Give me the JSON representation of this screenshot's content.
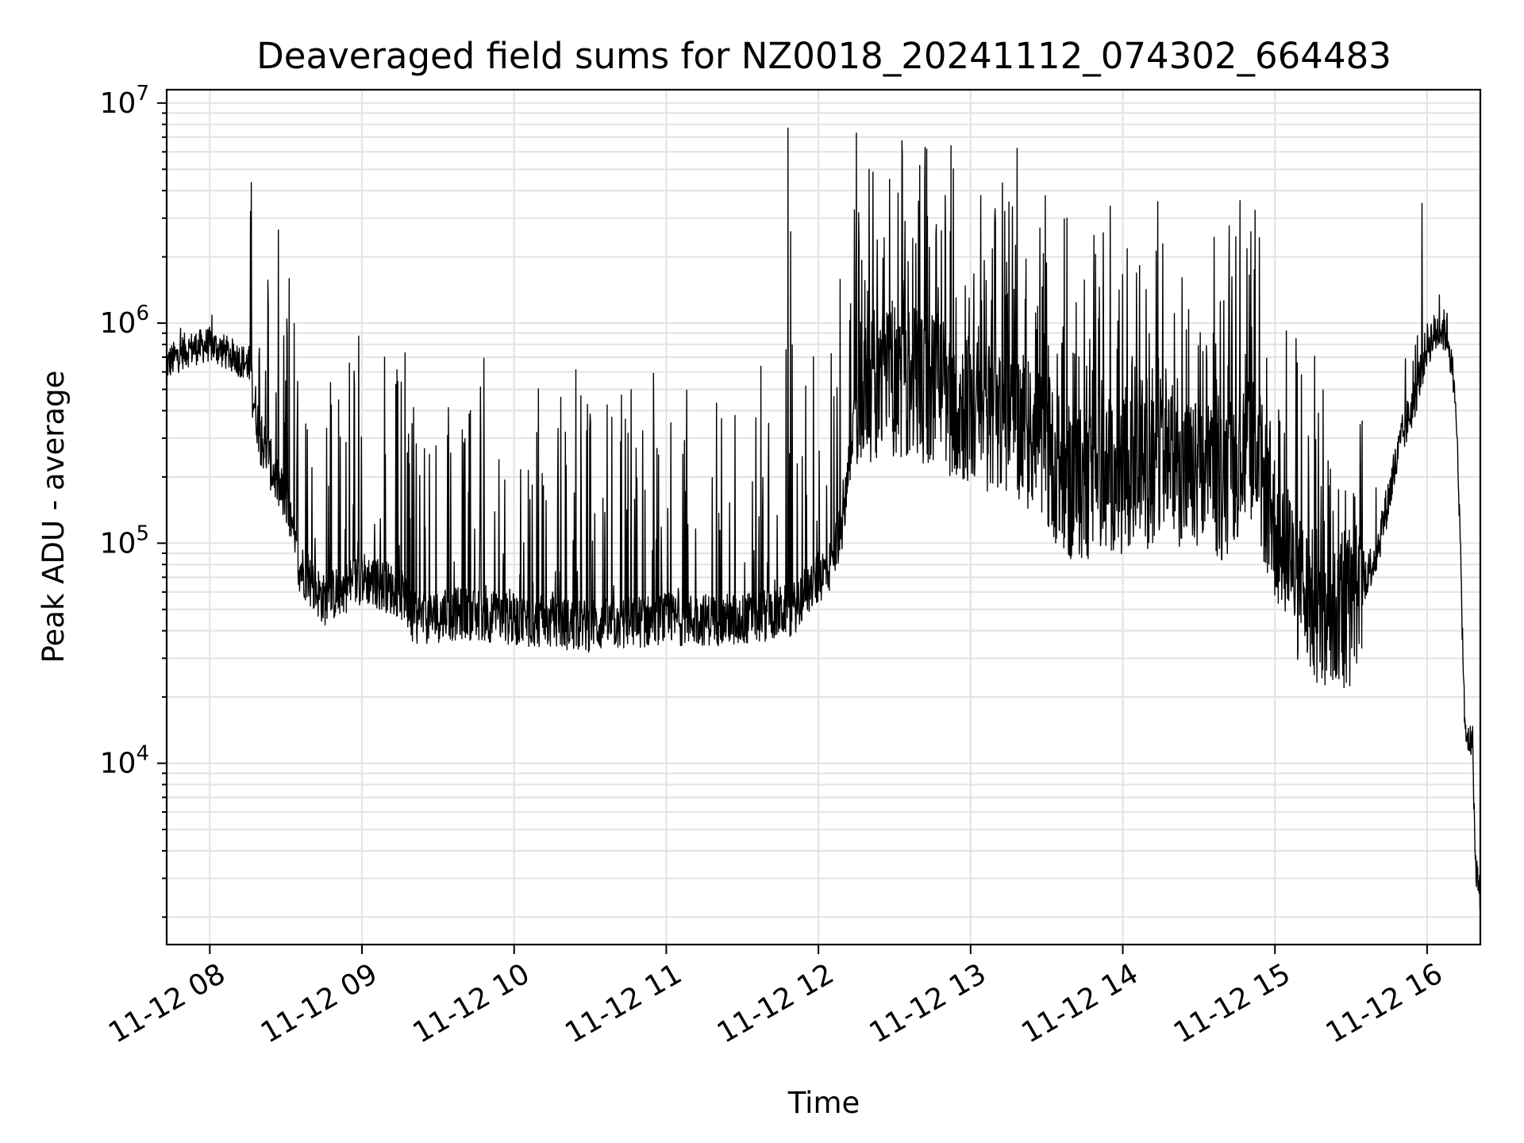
{
  "chart_data": {
    "type": "line",
    "title": "Deaveraged field sums for NZ0018_20241112_074302_664483",
    "xlabel": "Time",
    "ylabel": "Peak ADU - average",
    "y_scale": "log",
    "ylim": [
      1500,
      11500000
    ],
    "xlim": [
      "11-12 07:43",
      "11-12 16:21"
    ],
    "x_ticks": [
      "11-12 08",
      "11-12 09",
      "11-12 10",
      "11-12 11",
      "11-12 12",
      "11-12 13",
      "11-12 14",
      "11-12 15",
      "11-12 16"
    ],
    "y_ticks": [
      {
        "base": "10",
        "exp": "4",
        "value": 10000
      },
      {
        "base": "10",
        "exp": "5",
        "value": 100000
      },
      {
        "base": "10",
        "exp": "6",
        "value": 1000000
      },
      {
        "base": "10",
        "exp": "7",
        "value": 10000000
      }
    ],
    "grid": true,
    "line_color": "#000000",
    "series": [
      {
        "x": [
          "11-12 07:43",
          "11-12 07:50",
          "11-12 08:00",
          "11-12 08:10",
          "11-12 08:15",
          "11-12 08:20",
          "11-12 08:30",
          "11-12 08:35",
          "11-12 08:45",
          "11-12 09:00",
          "11-12 09:15",
          "11-12 09:20",
          "11-12 09:40",
          "11-12 10:00",
          "11-12 10:30",
          "11-12 11:00",
          "11-12 11:30",
          "11-12 11:50",
          "11-12 11:55",
          "11-12 12:05",
          "11-12 12:10",
          "11-12 12:15",
          "11-12 12:30",
          "11-12 12:45",
          "11-12 13:00",
          "11-12 13:20",
          "11-12 13:40",
          "11-12 14:00",
          "11-12 14:20",
          "11-12 14:40",
          "11-12 14:50",
          "11-12 15:00",
          "11-12 15:10",
          "11-12 15:20",
          "11-12 15:30",
          "11-12 15:40",
          "11-12 15:50",
          "11-12 15:55",
          "11-12 16:00",
          "11-12 16:05",
          "11-12 16:08",
          "11-12 16:10",
          "11-12 16:12",
          "11-12 16:15",
          "11-12 16:18",
          "11-12 16:19",
          "11-12 16:21"
        ],
        "y": [
          650000,
          750000,
          800000,
          700000,
          650000,
          300000,
          150000,
          80000,
          55000,
          70000,
          60000,
          45000,
          48000,
          45000,
          42000,
          45000,
          45000,
          50000,
          60000,
          80000,
          130000,
          500000,
          550000,
          500000,
          400000,
          350000,
          180000,
          200000,
          220000,
          180000,
          300000,
          120000,
          60000,
          45000,
          50000,
          90000,
          300000,
          450000,
          800000,
          950000,
          900000,
          600000,
          300000,
          13000,
          12500,
          3500,
          2500
        ]
      }
    ]
  }
}
